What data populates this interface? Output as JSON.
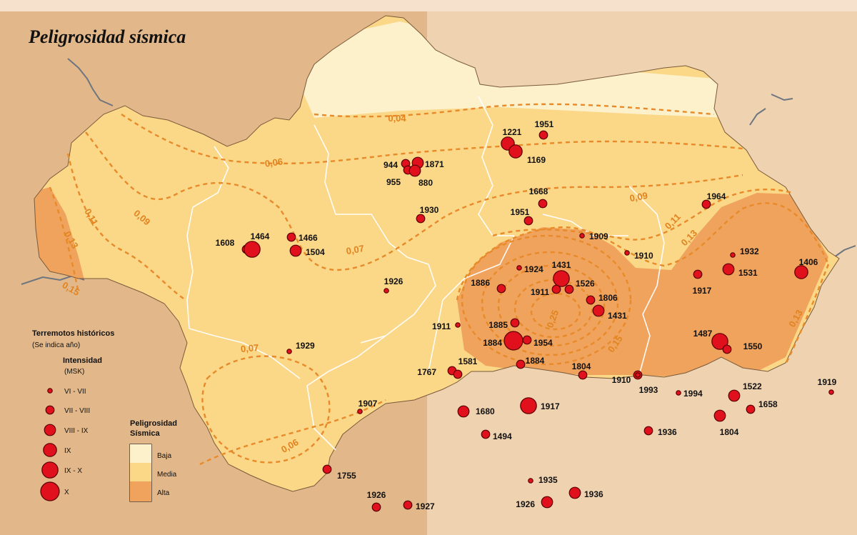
{
  "title": "Peligrosidad sísmica",
  "colors": {
    "background_left": "#e2b88a",
    "background_right": "#efd3b1",
    "hazard_low": "#fdf1cb",
    "hazard_medium": "#fbd788",
    "hazard_high": "#f0a35c",
    "isoline": "#e88a2a",
    "boundary": "#ffffff",
    "quake_fill": "#e0101c",
    "river": "#6d7580"
  },
  "legend_quakes": {
    "heading": "Terremotos históricos",
    "subheading": "(Se indica  año)",
    "intensity_title": "Intensidad",
    "intensity_unit": "(MSK)",
    "classes": [
      {
        "label": "VI - VII",
        "level": 1
      },
      {
        "label": "VII - VIII",
        "level": 2
      },
      {
        "label": "VIII - IX",
        "level": 3
      },
      {
        "label": "IX",
        "level": 4
      },
      {
        "label": "IX - X",
        "level": 5
      },
      {
        "label": "X",
        "level": 6
      }
    ]
  },
  "legend_hazard": {
    "heading_1": "Peligrosidad",
    "heading_2": "Sísmica",
    "classes": [
      {
        "label": "Baja",
        "color": "#fdf1cb"
      },
      {
        "label": "Media",
        "color": "#fbd788"
      },
      {
        "label": "Alta",
        "color": "#f0a35c"
      }
    ]
  },
  "isolines": [
    "0,04",
    "0,06",
    "0,07",
    "0,07",
    "0,06",
    "0,09",
    "0,09",
    "0,11",
    "0,11",
    "0,13",
    "0,13",
    "0,13",
    "0,15",
    "0,15",
    "0,25"
  ],
  "earthquakes": [
    {
      "year": "1221",
      "level": 4
    },
    {
      "year": "1951",
      "level": 2
    },
    {
      "year": "1169",
      "level": 4
    },
    {
      "year": "944",
      "level": 2
    },
    {
      "year": "1871",
      "level": 3
    },
    {
      "year": "955",
      "level": 2
    },
    {
      "year": "880",
      "level": 3
    },
    {
      "year": "1668",
      "level": 2
    },
    {
      "year": "1930",
      "level": 2
    },
    {
      "year": "1951",
      "level": 2
    },
    {
      "year": "1964",
      "level": 2
    },
    {
      "year": "1909",
      "level": 1
    },
    {
      "year": "1910",
      "level": 1
    },
    {
      "year": "1608",
      "level": 2
    },
    {
      "year": "1464",
      "level": 5
    },
    {
      "year": "1466",
      "level": 2
    },
    {
      "year": "1504",
      "level": 3
    },
    {
      "year": "1924",
      "level": 1
    },
    {
      "year": "1431",
      "level": 5
    },
    {
      "year": "1526",
      "level": 2
    },
    {
      "year": "1886",
      "level": 2
    },
    {
      "year": "1911",
      "level": 2
    },
    {
      "year": "1806",
      "level": 2
    },
    {
      "year": "1431",
      "level": 3
    },
    {
      "year": "1932",
      "level": 1
    },
    {
      "year": "1406",
      "level": 4
    },
    {
      "year": "1531",
      "level": 3
    },
    {
      "year": "1917",
      "level": 2
    },
    {
      "year": "1926",
      "level": 1
    },
    {
      "year": "1911",
      "level": 1
    },
    {
      "year": "1885",
      "level": 2
    },
    {
      "year": "1884",
      "level": 6
    },
    {
      "year": "1954",
      "level": 2
    },
    {
      "year": "1884",
      "level": 2
    },
    {
      "year": "1487",
      "level": 5
    },
    {
      "year": "1550",
      "level": 2
    },
    {
      "year": "1929",
      "level": 1
    },
    {
      "year": "1767",
      "level": 2
    },
    {
      "year": "1581",
      "level": 2
    },
    {
      "year": "1804",
      "level": 2
    },
    {
      "year": "1910",
      "level": 2
    },
    {
      "year": "1993",
      "level": 1
    },
    {
      "year": "1994",
      "level": 1
    },
    {
      "year": "1522",
      "level": 3
    },
    {
      "year": "1919",
      "level": 1
    },
    {
      "year": "1907",
      "level": 1
    },
    {
      "year": "1680",
      "level": 3
    },
    {
      "year": "1917",
      "level": 5
    },
    {
      "year": "1658",
      "level": 2
    },
    {
      "year": "1494",
      "level": 2
    },
    {
      "year": "1936",
      "level": 2
    },
    {
      "year": "1804",
      "level": 3
    },
    {
      "year": "1755",
      "level": 2
    },
    {
      "year": "1935",
      "level": 1
    },
    {
      "year": "1926",
      "level": 2
    },
    {
      "year": "1927",
      "level": 2
    },
    {
      "year": "1926",
      "level": 3
    },
    {
      "year": "1936",
      "level": 3
    }
  ]
}
